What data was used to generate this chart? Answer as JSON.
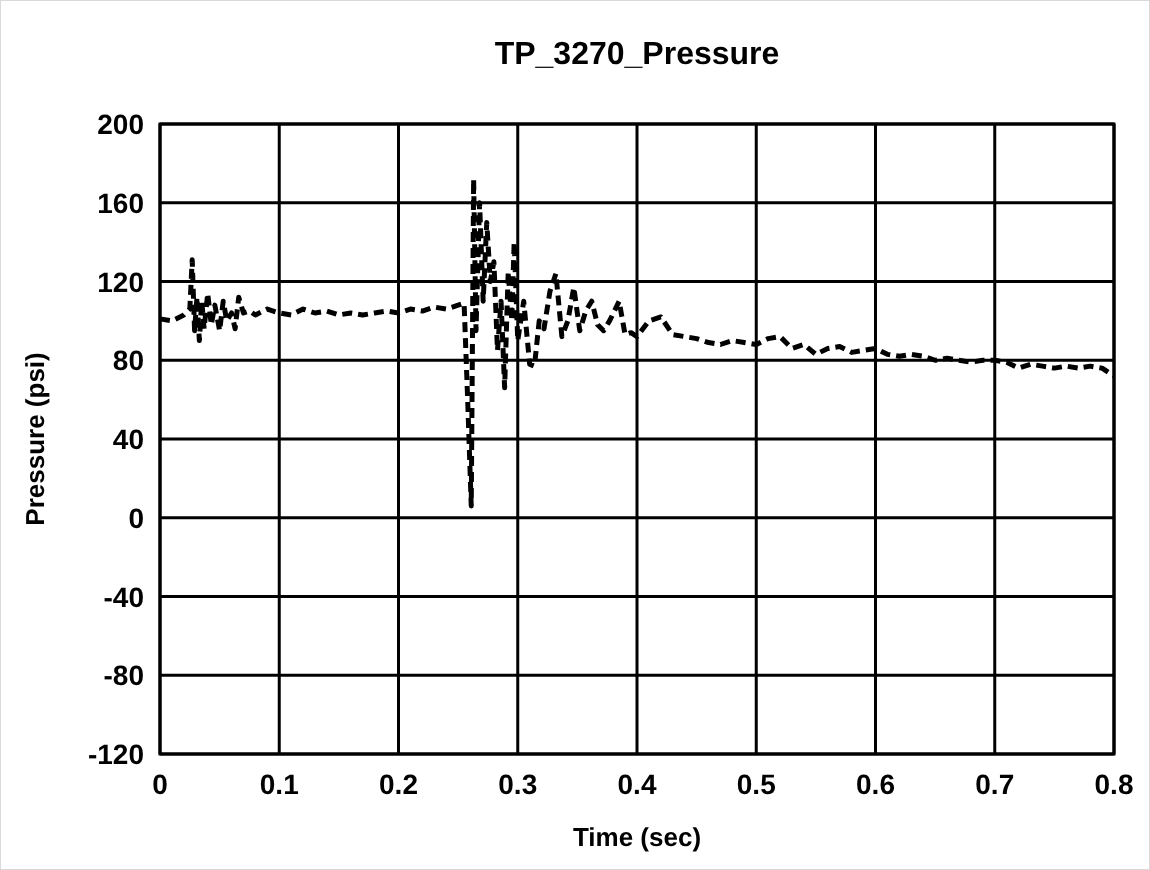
{
  "chart_data": {
    "type": "line",
    "title": "TP_3270_Pressure",
    "xlabel": "Time (sec)",
    "ylabel": "Pressure (psi)",
    "xlim": [
      0,
      0.8
    ],
    "ylim": [
      -120,
      200
    ],
    "xticks": [
      0,
      0.1,
      0.2,
      0.3,
      0.4,
      0.5,
      0.6,
      0.7,
      0.8
    ],
    "yticks": [
      -120,
      -80,
      -40,
      0,
      40,
      80,
      120,
      160,
      200
    ],
    "grid": true,
    "line_style": "dashed",
    "marker": "none",
    "x": [
      0,
      0.01,
      0.02,
      0.025,
      0.027,
      0.029,
      0.031,
      0.033,
      0.035,
      0.037,
      0.04,
      0.043,
      0.046,
      0.05,
      0.053,
      0.056,
      0.06,
      0.063,
      0.066,
      0.07,
      0.075,
      0.08,
      0.09,
      0.1,
      0.11,
      0.12,
      0.13,
      0.14,
      0.15,
      0.16,
      0.17,
      0.18,
      0.19,
      0.2,
      0.21,
      0.22,
      0.23,
      0.24,
      0.25,
      0.255,
      0.258,
      0.261,
      0.263,
      0.265,
      0.268,
      0.271,
      0.274,
      0.277,
      0.28,
      0.283,
      0.286,
      0.289,
      0.292,
      0.295,
      0.297,
      0.3,
      0.305,
      0.31,
      0.314,
      0.318,
      0.322,
      0.327,
      0.332,
      0.337,
      0.342,
      0.347,
      0.352,
      0.357,
      0.362,
      0.367,
      0.372,
      0.377,
      0.385,
      0.39,
      0.395,
      0.4,
      0.41,
      0.42,
      0.43,
      0.44,
      0.45,
      0.46,
      0.47,
      0.48,
      0.49,
      0.5,
      0.51,
      0.52,
      0.53,
      0.54,
      0.55,
      0.56,
      0.57,
      0.58,
      0.59,
      0.6,
      0.61,
      0.62,
      0.63,
      0.64,
      0.65,
      0.66,
      0.67,
      0.68,
      0.69,
      0.7,
      0.71,
      0.72,
      0.73,
      0.74,
      0.75,
      0.76,
      0.77,
      0.78,
      0.79,
      0.8
    ],
    "series": [
      {
        "color": "#000000",
        "values": [
          101,
          100,
          103,
          106,
          131,
          95,
          112,
          90,
          110,
          96,
          114,
          98,
          108,
          95,
          110,
          100,
          104,
          96,
          112,
          104,
          105,
          103,
          106,
          104,
          103,
          106,
          104,
          105,
          103,
          104,
          103,
          104,
          105,
          104,
          106,
          105,
          107,
          106,
          108,
          109,
          60,
          6,
          172,
          95,
          160,
          110,
          150,
          120,
          130,
          85,
          110,
          66,
          125,
          100,
          140,
          90,
          110,
          78,
          77,
          100,
          96,
          115,
          124,
          92,
          100,
          117,
          95,
          105,
          110,
          98,
          95,
          100,
          110,
          93,
          94,
          92,
          100,
          102,
          93,
          92,
          91,
          89,
          88,
          90,
          89,
          88,
          91,
          92,
          86,
          88,
          83,
          86,
          87,
          84,
          85,
          86,
          83,
          82,
          83,
          82,
          80,
          81,
          80,
          79,
          80,
          80,
          79,
          76,
          78,
          77,
          76,
          77,
          76,
          77,
          76,
          72
        ]
      }
    ]
  }
}
